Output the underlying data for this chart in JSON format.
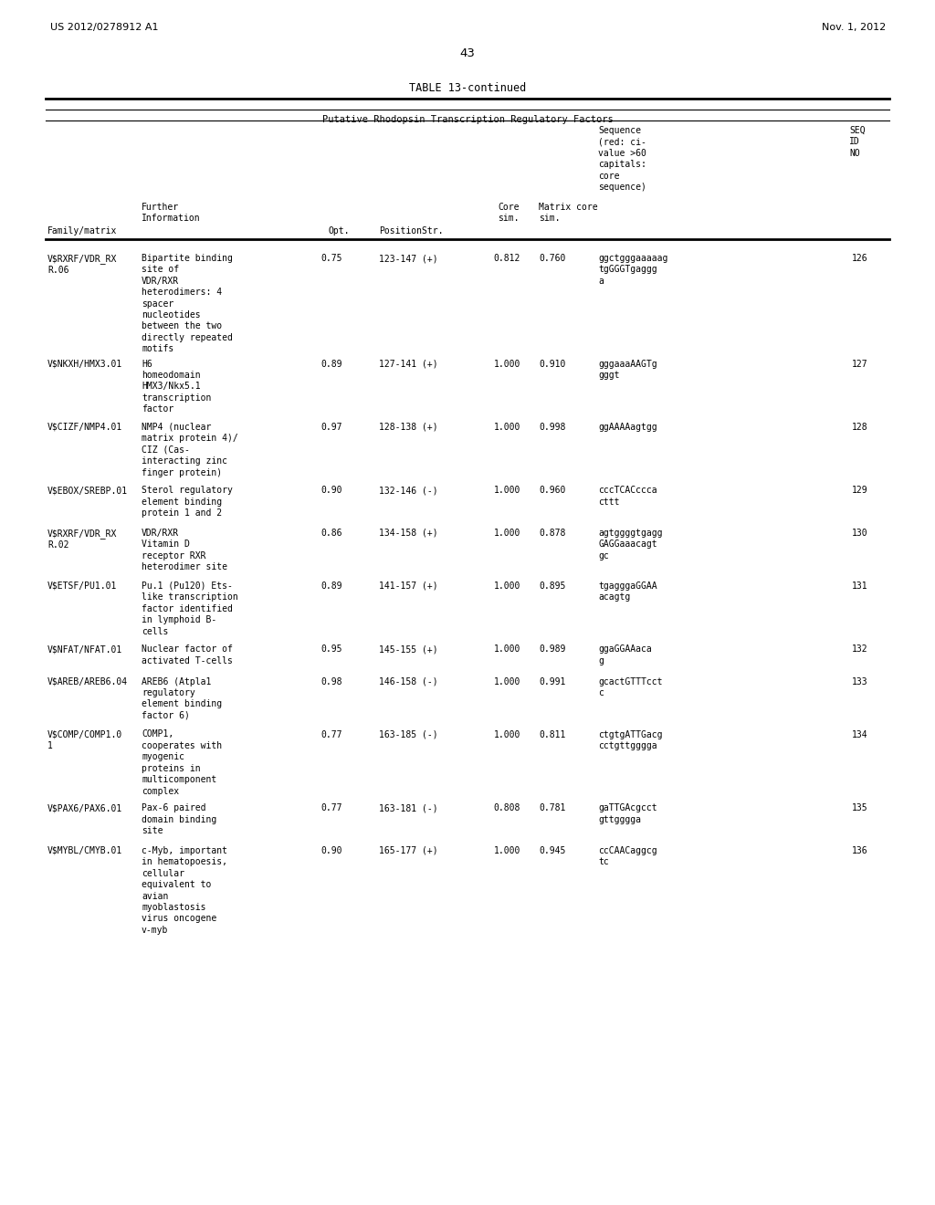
{
  "header_left": "US 2012/0278912 A1",
  "header_right": "Nov. 1, 2012",
  "page_number": "43",
  "table_title": "TABLE 13-continued",
  "table_subtitle": "Putative Rhodopsin Transcription Regulatory Factors",
  "col_headers": [
    "Family/matrix",
    "Further\nInformation",
    "Opt.",
    "PositionStr.",
    "Core\nsim.",
    "Matrix core\nsim.",
    "Sequence\n(red: ci-\nvalue >60\ncapitals:\ncore\nsequence)",
    "SEQ\nID\nNO"
  ],
  "rows": [
    {
      "family": "V$RXRF/VDR_RX\nR.06",
      "info": "Bipartite binding\nsite of\nVDR/RXR\nheterodimers: 4\nspacer\nnucleotides\nbetween the two\ndirectly repeated\nmotifs",
      "opt": "0.75",
      "position": "123-147 (+)",
      "core_sim": "0.812",
      "matrix_sim": "0.760",
      "sequence": "ggctgggaaaaag\ntgGGGTgaggg\na",
      "seq_id": "126"
    },
    {
      "family": "V$NKXH/HMX3.01",
      "info": "H6\nhomeodomain\nHMX3/Nkx5.1\ntranscription\nfactor",
      "opt": "0.89",
      "position": "127-141 (+)",
      "core_sim": "1.000",
      "matrix_sim": "0.910",
      "sequence": "gggaaaAAGTg\ngggt",
      "seq_id": "127"
    },
    {
      "family": "V$CIZF/NMP4.01",
      "info": "NMP4 (nuclear\nmatrix protein 4)/\nCIZ (Cas-\ninteracting zinc\nfinger protein)",
      "opt": "0.97",
      "position": "128-138 (+)",
      "core_sim": "1.000",
      "matrix_sim": "0.998",
      "sequence": "ggAAAAagtgg",
      "seq_id": "128"
    },
    {
      "family": "V$EBOX/SREBP.01",
      "info": "Sterol regulatory\nelement binding\nprotein 1 and 2",
      "opt": "0.90",
      "position": "132-146 (-)",
      "core_sim": "1.000",
      "matrix_sim": "0.960",
      "sequence": "cccTCACccca\ncttt",
      "seq_id": "129"
    },
    {
      "family": "V$RXRF/VDR_RX\nR.02",
      "info": "VDR/RXR\nVitamin D\nreceptor RXR\nheterodimer site",
      "opt": "0.86",
      "position": "134-158 (+)",
      "core_sim": "1.000",
      "matrix_sim": "0.878",
      "sequence": "agtggggtgagg\nGAGGaaacagt\ngc",
      "seq_id": "130"
    },
    {
      "family": "V$ETSF/PU1.01",
      "info": "Pu.1 (Pu120) Ets-\nlike transcription\nfactor identified\nin lymphoid B-\ncells",
      "opt": "0.89",
      "position": "141-157 (+)",
      "core_sim": "1.000",
      "matrix_sim": "0.895",
      "sequence": "tgagggaGGAA\nacagtg",
      "seq_id": "131"
    },
    {
      "family": "V$NFAT/NFAT.01",
      "info": "Nuclear factor of\nactivated T-cells",
      "opt": "0.95",
      "position": "145-155 (+)",
      "core_sim": "1.000",
      "matrix_sim": "0.989",
      "sequence": "ggaGGAAaca\ng",
      "seq_id": "132"
    },
    {
      "family": "V$AREB/AREB6.04",
      "info": "AREB6 (Atpla1\nregulatory\nelement binding\nfactor 6)",
      "opt": "0.98",
      "position": "146-158 (-)",
      "core_sim": "1.000",
      "matrix_sim": "0.991",
      "sequence": "gcactGTTTcct\nc",
      "seq_id": "133"
    },
    {
      "family": "V$COMP/COMP1.0\n1",
      "info": "COMP1,\ncooperates with\nmyogenic\nproteins in\nmulticomponent\ncomplex",
      "opt": "0.77",
      "position": "163-185 (-)",
      "core_sim": "1.000",
      "matrix_sim": "0.811",
      "sequence": "ctgtgATTGacg\ncctgttgggga",
      "seq_id": "134"
    },
    {
      "family": "V$PAX6/PAX6.01",
      "info": "Pax-6 paired\ndomain binding\nsite",
      "opt": "0.77",
      "position": "163-181 (-)",
      "core_sim": "0.808",
      "matrix_sim": "0.781",
      "sequence": "gaTTGAcgcct\ngttgggga",
      "seq_id": "135"
    },
    {
      "family": "V$MYBL/CMYB.01",
      "info": "c-Myb, important\nin hematopoesis,\ncellular\nequivalent to\navian\nmyoblastosis\nvirus oncogene\nv-myb",
      "opt": "0.90",
      "position": "165-177 (+)",
      "core_sim": "1.000",
      "matrix_sim": "0.945",
      "sequence": "ccCAACaggcg\ntc",
      "seq_id": "136"
    }
  ],
  "background_color": "#ffffff",
  "text_color": "#000000",
  "font_size": 7.5,
  "mono_font": "DejaVu Sans Mono"
}
